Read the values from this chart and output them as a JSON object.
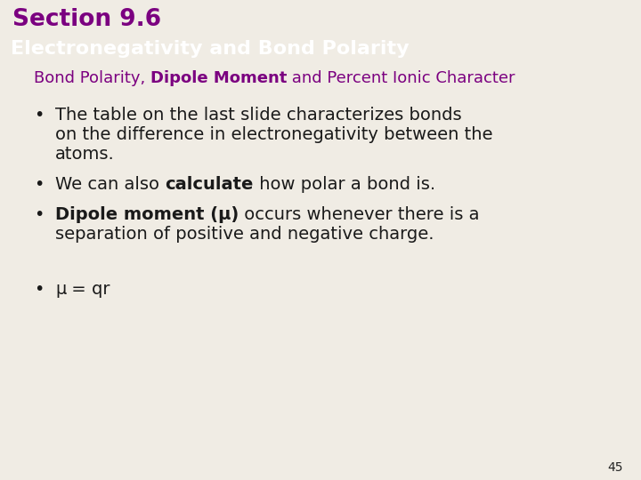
{
  "section_title": "Section 9.6",
  "section_title_color": "#7b0080",
  "header_text": "Electronegativity and Bond Polarity",
  "header_bg": "#000000",
  "header_text_color": "#ffffff",
  "subheader_color": "#7b0080",
  "bg_color": "#f0ece4",
  "footer_bg": "#857f6e",
  "page_number": "45",
  "text_color": "#1a1a1a",
  "pink_bar_color": "#cc007a",
  "section_num_fontsize": 19,
  "header_fontsize": 16,
  "subheader_fontsize": 13,
  "body_fontsize": 14,
  "footer_fontsize": 10
}
